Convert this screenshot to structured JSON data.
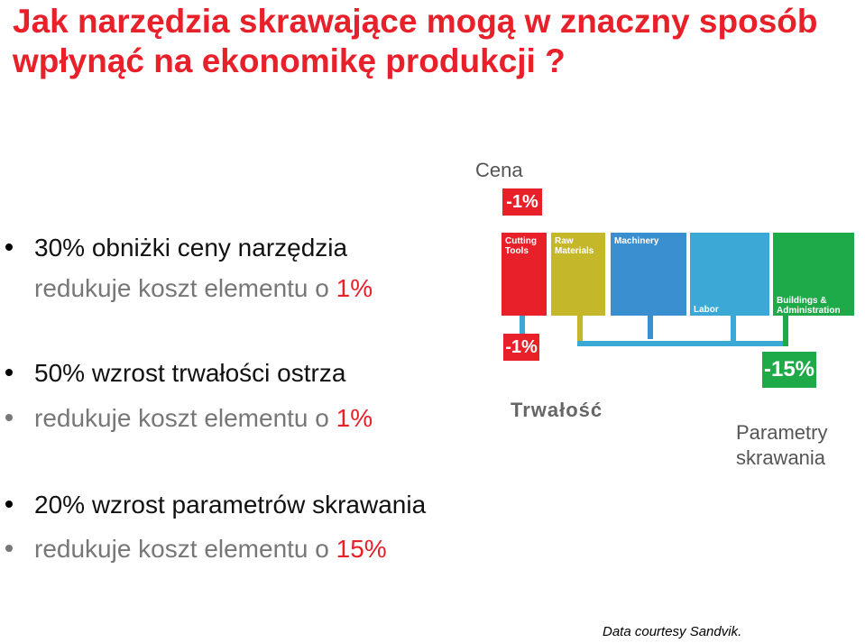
{
  "title": "Jak narzędzia skrawające mogą w znaczny sposób wpłynąć na ekonomikę produkcji ?",
  "bullets": [
    {
      "line1": "30% obniżki ceny narzędzia",
      "line2_prefix": "redukuje koszt elementu o ",
      "line2_value": "1%"
    },
    {
      "line1": "50% wzrost trwałości ostrza",
      "line2_prefix": "redukuje koszt elementu o ",
      "line2_value": "1%"
    },
    {
      "line1": "20% wzrost parametrów skrawania",
      "line2_prefix": "redukuje koszt elementu o ",
      "line2_value": "15%"
    }
  ],
  "diagram": {
    "label_price": "Cena",
    "label_durability": "Trwałość",
    "label_params": "Parametry skrawania",
    "tag_price": "-1%",
    "tag_durability": "-1%",
    "tag_params": "-15%",
    "panels": [
      {
        "label": "Cutting Tools",
        "color": "#e8202a"
      },
      {
        "label": "Raw Materials",
        "color": "#c4b72a"
      },
      {
        "label": "Machinery",
        "color": "#3a8fd0"
      },
      {
        "label": "Labor",
        "color": "#3aa9d6"
      },
      {
        "label": "Buildings & Administration",
        "color": "#1faa4a"
      }
    ]
  },
  "footer": "Data courtesy Sandvik."
}
